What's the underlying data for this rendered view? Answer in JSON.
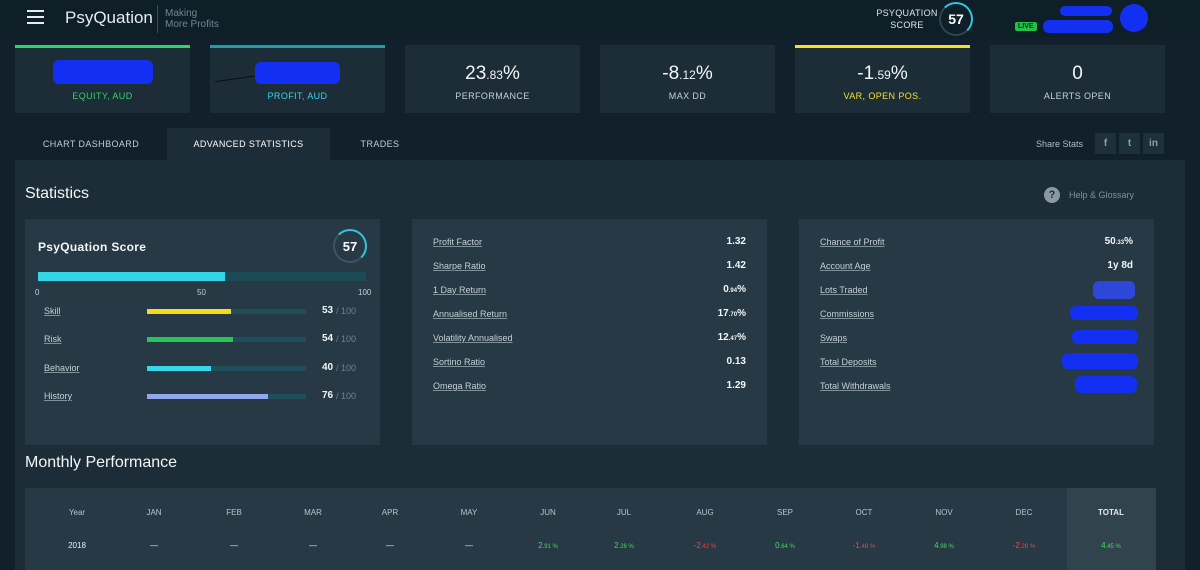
{
  "header": {
    "brand": "PsyQuation",
    "tagline_1": "Making",
    "tagline_2": "More Profits",
    "score_label_1": "PSYQUATION",
    "score_label_2": "SCORE",
    "score": "57",
    "live": "LIVE"
  },
  "kpis": [
    {
      "value": "",
      "label": "EQUITY, AUD",
      "accent": "#2dd46a"
    },
    {
      "value": "",
      "label": "PROFIT, AUD",
      "accent": "#1a9fb0"
    },
    {
      "value_main": "23",
      "value_dec": ".83",
      "value_unit": "%",
      "label": "PERFORMANCE"
    },
    {
      "value_main": "-8",
      "value_dec": ".12",
      "value_unit": "%",
      "label": "MAX DD"
    },
    {
      "value_main": "-1",
      "value_dec": ".59",
      "value_unit": "%",
      "label": "VAR, OPEN POS.",
      "accent": "#f3e126"
    },
    {
      "value": "0",
      "label": "ALERTS OPEN"
    }
  ],
  "tabs": [
    "CHART DASHBOARD",
    "ADVANCED STATISTICS",
    "TRADES"
  ],
  "share": {
    "label": "Share Stats",
    "facebook": "f",
    "twitter": "t",
    "linkedin": "in"
  },
  "statistics": {
    "title": "Statistics",
    "help": "Help & Glossary",
    "help_icon": "?",
    "score_title": "PsyQuation Score",
    "score": "57",
    "score_fraction": 0.57,
    "ticks": [
      "0",
      "50",
      "100"
    ],
    "sub_scores": [
      {
        "name": "Skill",
        "value": "53",
        "denominator": "/ 100",
        "fraction": 0.53,
        "color": "#f2dc1c"
      },
      {
        "name": "Risk",
        "value": "54",
        "denominator": "/ 100",
        "fraction": 0.54,
        "color": "#24c85a"
      },
      {
        "name": "Behavior",
        "value": "40",
        "denominator": "/ 100",
        "fraction": 0.4,
        "color": "#37d6e8"
      },
      {
        "name": "History",
        "value": "76",
        "denominator": "/ 100",
        "fraction": 0.76,
        "color": "#8fa8ee"
      }
    ],
    "ratios": [
      {
        "name": "Profit Factor",
        "value": "1.32"
      },
      {
        "name": "Sharpe Ratio",
        "value": "1.42"
      },
      {
        "name": "1 Day Return",
        "value_main": "0",
        "value_dec": ".94",
        "value_unit": "%"
      },
      {
        "name": "Annualised Return",
        "value_main": "17",
        "value_dec": ".70",
        "value_unit": "%"
      },
      {
        "name": "Volatility Annualised",
        "value_main": "12",
        "value_dec": ".47",
        "value_unit": "%"
      },
      {
        "name": "Sortino Ratio",
        "value": "0.13"
      },
      {
        "name": "Omega Ratio",
        "value": "1.29"
      }
    ],
    "account": [
      {
        "name": "Chance of Profit",
        "value_main": "50",
        "value_dec": ".33",
        "value_unit": "%"
      },
      {
        "name": "Account Age",
        "value": "1y 8d"
      },
      {
        "name": "Lots Traded",
        "value": ""
      },
      {
        "name": "Commissions",
        "value": ""
      },
      {
        "name": "Swaps",
        "value": ""
      },
      {
        "name": "Total Deposits",
        "value": ""
      },
      {
        "name": "Total Withdrawals",
        "value": ""
      }
    ]
  },
  "monthly": {
    "title": "Monthly Performance",
    "headers": [
      "Year",
      "JAN",
      "FEB",
      "MAR",
      "APR",
      "MAY",
      "JUN",
      "JUL",
      "AUG",
      "SEP",
      "OCT",
      "NOV",
      "DEC",
      "TOTAL"
    ],
    "rows": [
      {
        "year": "2018",
        "cells": [
          {
            "main": "—",
            "dec": "",
            "unit": "",
            "sign": ""
          },
          {
            "main": "—",
            "dec": "",
            "unit": "",
            "sign": ""
          },
          {
            "main": "—",
            "dec": "",
            "unit": "",
            "sign": ""
          },
          {
            "main": "—",
            "dec": "",
            "unit": "",
            "sign": ""
          },
          {
            "main": "—",
            "dec": "",
            "unit": "",
            "sign": ""
          },
          {
            "main": "2",
            "dec": ".91",
            "unit": " %",
            "sign": "pos"
          },
          {
            "main": "2",
            "dec": ".26",
            "unit": " %",
            "sign": "pos"
          },
          {
            "main": "-2",
            "dec": ".42",
            "unit": " %",
            "sign": "neg"
          },
          {
            "main": "0",
            "dec": ".64",
            "unit": " %",
            "sign": "pos"
          },
          {
            "main": "-1",
            "dec": ".48",
            "unit": " %",
            "sign": "neg"
          },
          {
            "main": "4",
            "dec": ".98",
            "unit": " %",
            "sign": "pos"
          },
          {
            "main": "-2",
            "dec": ".28",
            "unit": " %",
            "sign": "neg"
          },
          {
            "main": "4",
            "dec": ".45",
            "unit": " %",
            "sign": "pos"
          }
        ]
      }
    ]
  },
  "colors": {
    "background": "#11202a",
    "panel": "#1c2d37",
    "card": "#263944",
    "accent_cyan": "#33d6e6",
    "positive": "#3fdb62",
    "negative": "#f2434a",
    "redaction": "#1330f2"
  }
}
